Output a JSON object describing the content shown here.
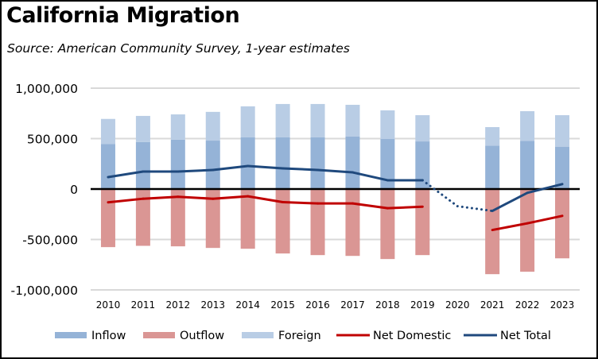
{
  "chart_data": {
    "type": "bar",
    "title": "California Migration",
    "subtitle": "Source:  American Community Survey, 1-year estimates",
    "xlabel": "",
    "ylabel": "",
    "ylim": [
      -1000000,
      1000000
    ],
    "yticks": [
      1000000,
      500000,
      0,
      -500000,
      -1000000
    ],
    "ytick_labels": [
      "1,000,000",
      "500,000",
      "0",
      "-500,000",
      "-1,000,000"
    ],
    "grid": true,
    "legend_position": "bottom",
    "categories": [
      "2010",
      "2011",
      "2012",
      "2013",
      "2014",
      "2015",
      "2016",
      "2017",
      "2018",
      "2019",
      "2020",
      "2021",
      "2022",
      "2023"
    ],
    "series": [
      {
        "name": "Inflow",
        "kind": "stacked-bar",
        "color": "#95B3D7",
        "values": [
          445000,
          465000,
          490000,
          480000,
          512000,
          512000,
          512000,
          520000,
          496000,
          472000,
          null,
          430000,
          477000,
          420000
        ]
      },
      {
        "name": "Outflow",
        "kind": "bar",
        "color": "#DA9694",
        "values": [
          -576000,
          -563000,
          -568000,
          -584000,
          -592000,
          -639000,
          -655000,
          -663000,
          -694000,
          -655000,
          null,
          -844000,
          -820000,
          -687000
        ]
      },
      {
        "name": "Foreign",
        "kind": "stacked-bar",
        "color": "#B9CDE5",
        "values": [
          250000,
          260000,
          250000,
          285000,
          308000,
          331000,
          331000,
          315000,
          284000,
          260000,
          null,
          184000,
          295000,
          312000
        ]
      },
      {
        "name": "Net Domestic",
        "kind": "line",
        "color": "#C00000",
        "values": [
          -132000,
          -96000,
          -77000,
          -96000,
          -72000,
          -130000,
          -143000,
          -143000,
          -190000,
          -175000,
          null,
          -406000,
          -340000,
          -266000
        ]
      },
      {
        "name": "Net Total",
        "kind": "line",
        "color": "#1F497D",
        "values": [
          118000,
          173000,
          173000,
          189000,
          228000,
          205000,
          189000,
          165000,
          87000,
          87000,
          -170000,
          -217000,
          -38000,
          49000
        ],
        "dotted_segments": [
          [
            9,
            10
          ],
          [
            10,
            11
          ]
        ]
      }
    ]
  }
}
